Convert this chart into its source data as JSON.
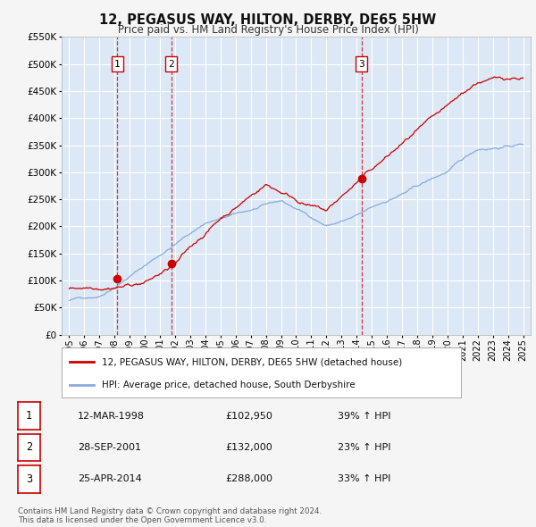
{
  "title": "12, PEGASUS WAY, HILTON, DERBY, DE65 5HW",
  "subtitle": "Price paid vs. HM Land Registry's House Price Index (HPI)",
  "background_color": "#f5f5f5",
  "plot_bg_color": "#dce8f5",
  "grid_color": "#ffffff",
  "sale_color": "#cc0000",
  "hpi_color": "#88aadd",
  "sale_dates": [
    1998.19,
    2001.74,
    2014.32
  ],
  "sale_prices": [
    102950,
    132000,
    288000
  ],
  "sale_labels": [
    "1",
    "2",
    "3"
  ],
  "legend_sale_label": "12, PEGASUS WAY, HILTON, DERBY, DE65 5HW (detached house)",
  "legend_hpi_label": "HPI: Average price, detached house, South Derbyshire",
  "table_rows": [
    {
      "num": "1",
      "date": "12-MAR-1998",
      "price": "£102,950",
      "change": "39% ↑ HPI"
    },
    {
      "num": "2",
      "date": "28-SEP-2001",
      "price": "£132,000",
      "change": "23% ↑ HPI"
    },
    {
      "num": "3",
      "date": "25-APR-2014",
      "price": "£288,000",
      "change": "33% ↑ HPI"
    }
  ],
  "footer": "Contains HM Land Registry data © Crown copyright and database right 2024.\nThis data is licensed under the Open Government Licence v3.0.",
  "ylim": [
    0,
    550000
  ],
  "yticks": [
    0,
    50000,
    100000,
    150000,
    200000,
    250000,
    300000,
    350000,
    400000,
    450000,
    500000,
    550000
  ],
  "xlim": [
    1994.5,
    2025.5
  ],
  "xticks": [
    1995,
    1996,
    1997,
    1998,
    1999,
    2000,
    2001,
    2002,
    2003,
    2004,
    2005,
    2006,
    2007,
    2008,
    2009,
    2010,
    2011,
    2012,
    2013,
    2014,
    2015,
    2016,
    2017,
    2018,
    2019,
    2020,
    2021,
    2022,
    2023,
    2024,
    2025
  ]
}
